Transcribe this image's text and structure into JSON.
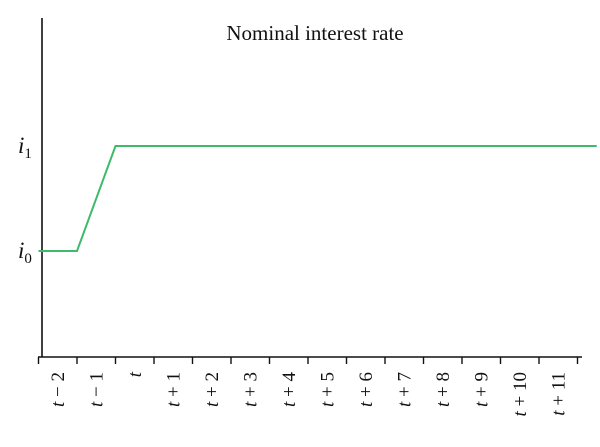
{
  "chart_data": {
    "type": "line",
    "title": "Nominal interest rate",
    "x_categories": [
      "t − 2",
      "t − 1",
      "t",
      "t + 1",
      "t + 2",
      "t + 3",
      "t + 4",
      "t + 5",
      "t + 6",
      "t + 7",
      "t + 8",
      "t + 9",
      "t + 10",
      "t + 11"
    ],
    "y_tick_labels": [
      {
        "base": "i",
        "sub": "0",
        "level": 0
      },
      {
        "base": "i",
        "sub": "1",
        "level": 1
      }
    ],
    "series": [
      {
        "color": "#3dbb6a",
        "points": [
          {
            "x": -2.5,
            "y": 0
          },
          {
            "x": -1.5,
            "y": 0
          },
          {
            "x": -0.5,
            "y": 1
          },
          {
            "x": 12.0,
            "y": 1
          }
        ]
      }
    ],
    "axis_color": "#111111",
    "grid": false
  }
}
